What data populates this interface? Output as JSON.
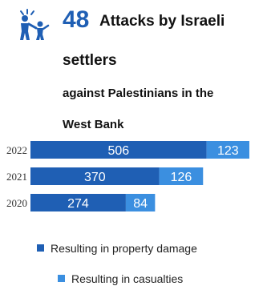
{
  "header": {
    "number": "48",
    "title_line1": "Attacks by Israeli",
    "title_line2": "settlers",
    "subtitle_line1": "against Palestinians in the",
    "subtitle_line2": "West Bank",
    "icon": "family-figures-icon"
  },
  "colors": {
    "accent": "#1f5fb4",
    "property": "#1f5fb4",
    "casualties": "#3b8fe0"
  },
  "chart_data": {
    "type": "bar",
    "orientation": "horizontal",
    "stacked": true,
    "categories": [
      "2022",
      "2021",
      "2020"
    ],
    "series": [
      {
        "name": "Resulting in property damage",
        "values": [
          506,
          370,
          274
        ]
      },
      {
        "name": "Resulting in casualties",
        "values": [
          123,
          126,
          84
        ]
      }
    ],
    "title": "",
    "xlabel": "",
    "ylabel": "",
    "grid": false,
    "legend_position": "bottom"
  },
  "legend": {
    "items": [
      {
        "label": "Resulting in property damage"
      },
      {
        "label": "Resulting in casualties"
      }
    ]
  }
}
